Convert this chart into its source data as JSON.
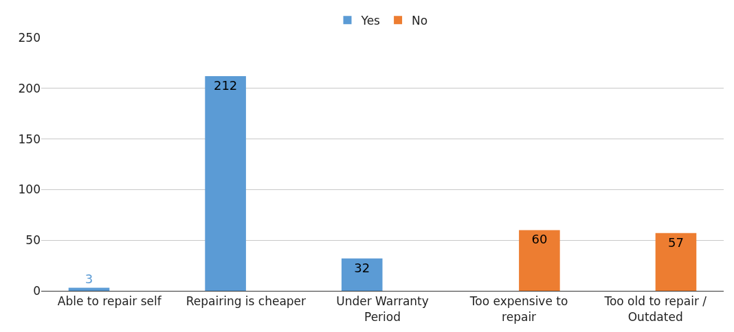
{
  "chart_data": {
    "type": "bar",
    "categories": [
      "Able to repair self",
      "Repairing is cheaper",
      "Under Warranty Period",
      "Too expensive to repair",
      "Too old to repair / Outdated"
    ],
    "series": [
      {
        "name": "Yes",
        "color": "#5b9bd5",
        "values": [
          3,
          212,
          32,
          null,
          null
        ]
      },
      {
        "name": "No",
        "color": "#ed7d31",
        "values": [
          null,
          null,
          null,
          60,
          57
        ]
      }
    ],
    "ylim": [
      0,
      250
    ],
    "yticks": [
      0,
      50,
      100,
      150,
      200,
      250
    ],
    "grid": "y",
    "legend": "top",
    "data_labels": true
  }
}
